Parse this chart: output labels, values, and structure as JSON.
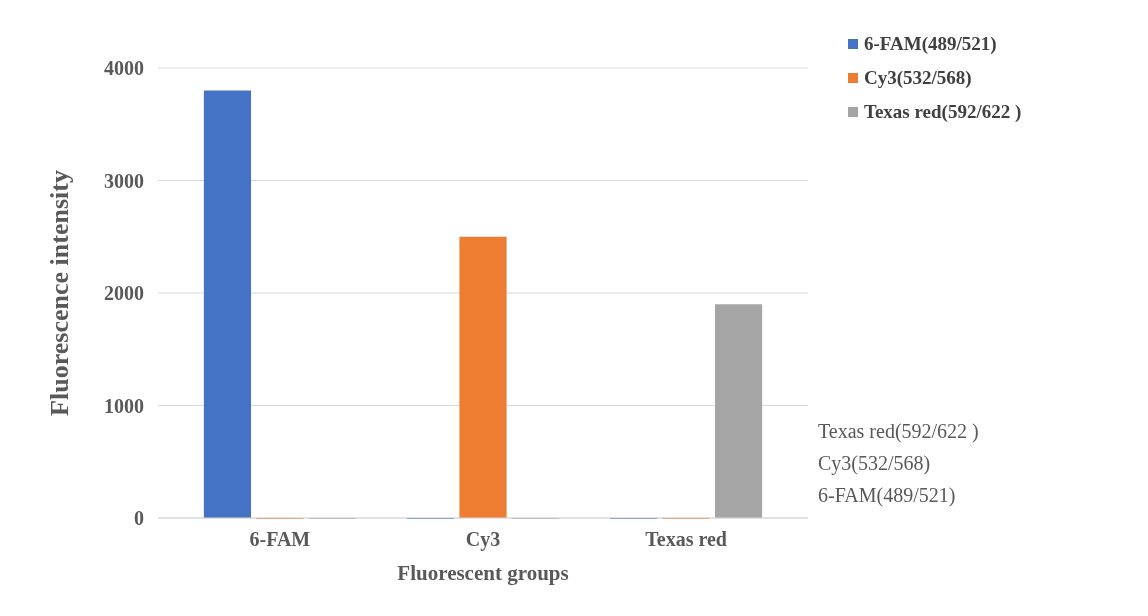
{
  "chart_data": {
    "type": "bar",
    "xlabel": "Fluorescent groups",
    "ylabel": "Fluorescence intensity",
    "categories": [
      "6-FAM",
      "Cy3",
      "Texas red"
    ],
    "series": [
      {
        "name": "6-FAM(489/521)",
        "color": "#4472c4",
        "values": [
          3800,
          0,
          0
        ]
      },
      {
        "name": "Cy3(532/568)",
        "color": "#ed7d31",
        "values": [
          0,
          2500,
          0
        ]
      },
      {
        "name": "Texas red(592/622 )",
        "color": "#a5a5a5",
        "values": [
          0,
          0,
          1900
        ]
      }
    ],
    "ylim": [
      0,
      4000
    ],
    "yticks": [
      0,
      1000,
      2000,
      3000,
      4000
    ],
    "grid": "y",
    "legend": "top right",
    "annotations": [
      "Texas red(592/622 )",
      "Cy3(532/568)",
      "6-FAM(489/521)"
    ]
  }
}
